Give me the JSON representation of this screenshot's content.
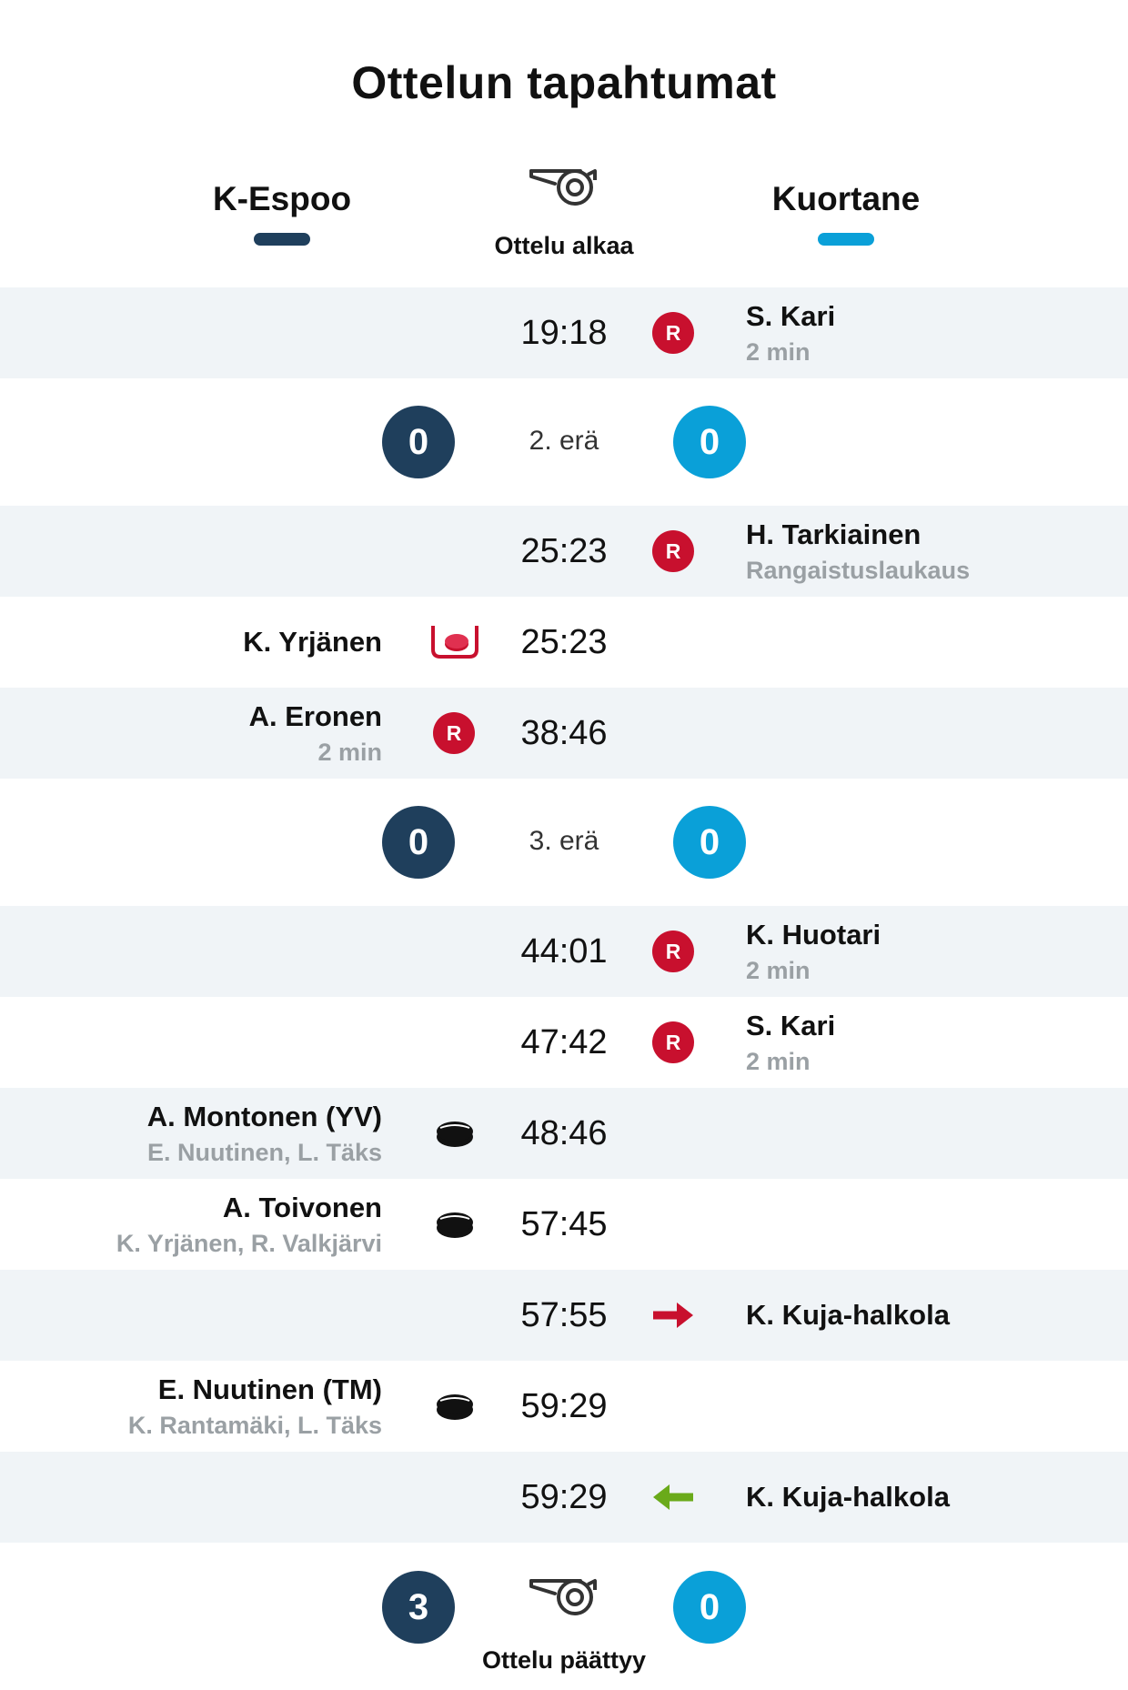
{
  "title": "Ottelun tapahtumat",
  "teams": {
    "home": {
      "name": "K-Espoo",
      "color": "#1f3f5c"
    },
    "away": {
      "name": "Kuortane",
      "color": "#0aa0d8"
    }
  },
  "start": {
    "label": "Ottelu alkaa",
    "icon": "whistle-icon"
  },
  "events_a": [
    {
      "time": "19:18",
      "side": "away",
      "type": "penalty",
      "badge": "R",
      "player": "S. Kari",
      "detail": "2 min"
    }
  ],
  "period2": {
    "label": "2. erä",
    "home_score": "0",
    "away_score": "0"
  },
  "events_b": [
    {
      "time": "25:23",
      "side": "away",
      "type": "penalty",
      "badge": "R",
      "player": "H. Tarkiainen",
      "detail": "Rangaistuslaukaus"
    },
    {
      "time": "25:23",
      "side": "home",
      "type": "penalty-shot-save",
      "player": "K. Yrjänen"
    },
    {
      "time": "38:46",
      "side": "home",
      "type": "penalty",
      "badge": "R",
      "player": "A. Eronen",
      "detail": "2 min"
    }
  ],
  "period3": {
    "label": "3. erä",
    "home_score": "0",
    "away_score": "0"
  },
  "events_c": [
    {
      "time": "44:01",
      "side": "away",
      "type": "penalty",
      "badge": "R",
      "player": "K. Huotari",
      "detail": "2 min"
    },
    {
      "time": "47:42",
      "side": "away",
      "type": "penalty",
      "badge": "R",
      "player": "S. Kari",
      "detail": "2 min"
    },
    {
      "time": "48:46",
      "side": "home",
      "type": "goal",
      "player": "A. Montonen (YV)",
      "detail": "E. Nuutinen, L. Täks"
    },
    {
      "time": "57:45",
      "side": "home",
      "type": "goal",
      "player": "A. Toivonen",
      "detail": "K. Yrjänen, R. Valkjärvi"
    },
    {
      "time": "57:55",
      "side": "away",
      "type": "goalie-out",
      "player": "K. Kuja-halkola"
    },
    {
      "time": "59:29",
      "side": "home",
      "type": "goal",
      "player": "E. Nuutinen (TM)",
      "detail": "K. Rantamäki, L. Täks"
    },
    {
      "time": "59:29",
      "side": "away",
      "type": "goalie-in",
      "player": "K. Kuja-halkola"
    }
  ],
  "end": {
    "label": "Ottelu päättyy",
    "home_score": "3",
    "away_score": "0",
    "icon": "whistle-icon"
  },
  "colors": {
    "penalty": "#c8102e",
    "goalie_in": "#6aaa1a",
    "shaded_row": "#f0f4f7"
  }
}
